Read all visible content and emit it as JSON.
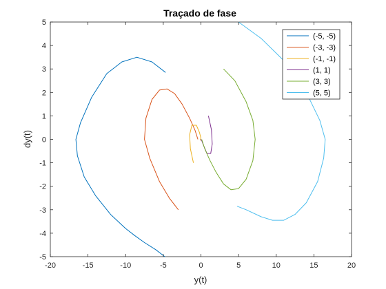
{
  "chart_data": {
    "type": "line",
    "title": "Traçado de fase",
    "xlabel": "y(t)",
    "ylabel": "dy(t)",
    "xlim": [
      -20,
      20
    ],
    "ylim": [
      -5,
      5
    ],
    "xticks": [
      -20,
      -15,
      -10,
      -5,
      0,
      5,
      10,
      15,
      20
    ],
    "yticks": [
      -5,
      -4,
      -3,
      -2,
      -1,
      0,
      1,
      2,
      3,
      4,
      5
    ],
    "grid": false,
    "legend_position": "top-right",
    "series": [
      {
        "name": "(-5, -5)",
        "color": "#0072BD",
        "x": [
          -4.7,
          -6.5,
          -8.5,
          -10.5,
          -12.5,
          -14.5,
          -16.0,
          -16.6,
          -16.4,
          -15.5,
          -14.0,
          -12.0,
          -10.0,
          -8.8,
          -7.5,
          -6.0,
          -4.8
        ],
        "y": [
          2.85,
          3.3,
          3.5,
          3.3,
          2.8,
          1.8,
          0.7,
          0.0,
          -0.7,
          -1.6,
          -2.4,
          -3.2,
          -3.8,
          -4.1,
          -4.4,
          -4.7,
          -5.0
        ]
      },
      {
        "name": "(-3, -3)",
        "color": "#D95319",
        "x": [
          -3.0,
          -4.2,
          -5.5,
          -6.8,
          -7.5,
          -7.3,
          -6.5,
          -5.5,
          -4.5,
          -3.5,
          -2.5,
          -1.5,
          -0.8,
          -0.4
        ],
        "y": [
          -3.0,
          -2.5,
          -1.8,
          -0.8,
          0.0,
          0.9,
          1.7,
          2.1,
          2.15,
          1.95,
          1.5,
          0.9,
          0.4,
          0.0
        ]
      },
      {
        "name": "(-1, -1)",
        "color": "#EDB120",
        "x": [
          -1.0,
          -1.4,
          -1.5,
          -1.2,
          -0.6,
          -0.2,
          0.0,
          -0.1
        ],
        "y": [
          -1.0,
          -0.4,
          0.2,
          0.6,
          0.6,
          0.3,
          0.05,
          -0.05
        ]
      },
      {
        "name": "(1, 1)",
        "color": "#7E2F8E",
        "x": [
          1.0,
          1.4,
          1.5,
          1.3,
          0.8,
          0.4,
          0.1,
          -0.05
        ],
        "y": [
          1.0,
          0.4,
          -0.2,
          -0.6,
          -0.6,
          -0.3,
          -0.05,
          0.0
        ]
      },
      {
        "name": "(3, 3)",
        "color": "#77AC30",
        "x": [
          3.0,
          4.5,
          6.0,
          6.9,
          7.2,
          6.9,
          6.0,
          5.0,
          4.0,
          3.0,
          2.0,
          1.2,
          0.5,
          0.1
        ],
        "y": [
          3.0,
          2.5,
          1.6,
          0.8,
          0.0,
          -0.9,
          -1.7,
          -2.1,
          -2.15,
          -1.9,
          -1.4,
          -0.9,
          -0.4,
          0.0
        ]
      },
      {
        "name": "(5, 5)",
        "color": "#4DBEEE",
        "x": [
          5.0,
          8.0,
          11.5,
          14.0,
          15.8,
          16.5,
          16.3,
          15.5,
          14.0,
          12.5,
          11.0,
          9.5,
          8.0,
          6.0,
          4.8
        ],
        "y": [
          5.0,
          4.3,
          3.2,
          2.0,
          0.8,
          0.0,
          -0.8,
          -1.8,
          -2.7,
          -3.2,
          -3.45,
          -3.45,
          -3.3,
          -3.0,
          -2.85
        ]
      }
    ]
  }
}
